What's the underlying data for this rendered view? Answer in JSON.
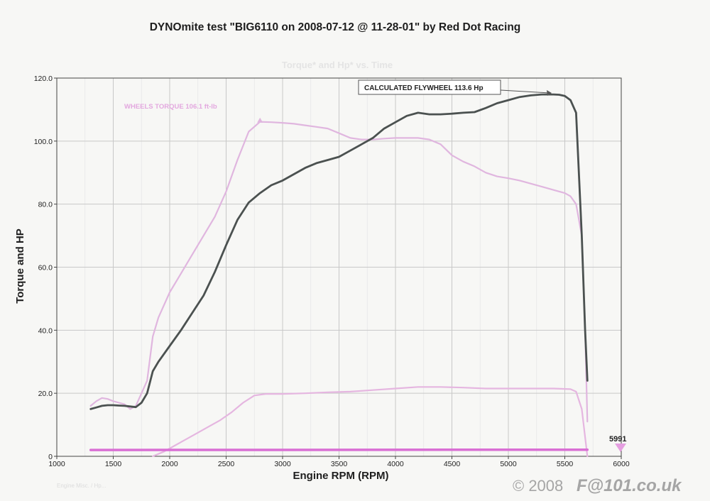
{
  "chart_data": {
    "type": "line",
    "title": "DYNOmite test \"BIG6110 on 2008-07-12 @ 11-28-01\" by Red Dot Racing",
    "subtitle": "Torque* and Hp* vs. Time",
    "xlabel": "Engine RPM (RPM)",
    "ylabel": "Torque and HP",
    "xlim": [
      1000,
      6000
    ],
    "ylim": [
      0,
      120
    ],
    "xticks": [
      1000,
      1500,
      2000,
      2500,
      3000,
      3500,
      4000,
      4500,
      5000,
      5500,
      6000
    ],
    "yticks": [
      0,
      20,
      40,
      60,
      80,
      100,
      120
    ],
    "xtick_labels": [
      "1000",
      "1500",
      "2000",
      "2500",
      "3000",
      "3500",
      "4000",
      "4500",
      "5000",
      "5500",
      "6000"
    ],
    "ytick_labels": [
      "0",
      "20.0",
      "40.0",
      "60.0",
      "80.0",
      "100.0",
      "120.0"
    ],
    "grid": true,
    "series": [
      {
        "name": "WHEELS TORQUE 106.1 ft-lb",
        "color": "#e0b6df",
        "x": [
          1300,
          1350,
          1400,
          1450,
          1500,
          1550,
          1600,
          1650,
          1700,
          1750,
          1800,
          1850,
          1900,
          2000,
          2100,
          2200,
          2300,
          2400,
          2500,
          2600,
          2700,
          2800,
          2900,
          3000,
          3100,
          3200,
          3300,
          3400,
          3500,
          3600,
          3700,
          3800,
          3900,
          4000,
          4100,
          4200,
          4300,
          4400,
          4500,
          4600,
          4700,
          4800,
          4900,
          5000,
          5100,
          5200,
          5300,
          5400,
          5500,
          5550,
          5600,
          5650,
          5680,
          5700
        ],
        "y": [
          16,
          17.5,
          18.5,
          18.2,
          17.5,
          17,
          16.5,
          15,
          16,
          20,
          24,
          38,
          44,
          52,
          58,
          64,
          70,
          76,
          84,
          94,
          103,
          106.1,
          106,
          105.8,
          105.5,
          105,
          104.5,
          104,
          102.5,
          101,
          100.5,
          100.5,
          100.8,
          101,
          101,
          101,
          100.5,
          99,
          95.5,
          93.5,
          92,
          90,
          88.8,
          88.2,
          87.5,
          86.5,
          85.5,
          84.5,
          83.5,
          82.5,
          80,
          70,
          40,
          11
        ]
      },
      {
        "name": "CALCULATED FLYWHEEL 113.6 Hp",
        "color": "#4b5150",
        "x": [
          1300,
          1350,
          1400,
          1450,
          1500,
          1550,
          1600,
          1650,
          1700,
          1750,
          1800,
          1850,
          1900,
          2000,
          2100,
          2200,
          2300,
          2400,
          2500,
          2600,
          2700,
          2800,
          2900,
          3000,
          3100,
          3200,
          3300,
          3400,
          3500,
          3600,
          3700,
          3800,
          3900,
          4000,
          4100,
          4200,
          4300,
          4400,
          4500,
          4600,
          4700,
          4800,
          4900,
          5000,
          5100,
          5200,
          5300,
          5400,
          5450,
          5500,
          5550,
          5600,
          5650,
          5680,
          5700
        ],
        "y": [
          15,
          15.5,
          16,
          16.2,
          16.2,
          16.1,
          16,
          15.8,
          15.6,
          17,
          20,
          27,
          30,
          35,
          40,
          45.5,
          51,
          58.5,
          67,
          75,
          80.5,
          83.5,
          86,
          87.5,
          89.5,
          91.5,
          93,
          94,
          95,
          97,
          99,
          101,
          104,
          106,
          108,
          109,
          108.5,
          108.5,
          108.7,
          109,
          109.2,
          110.5,
          112,
          113,
          114,
          114.5,
          114.8,
          114.8,
          114.7,
          114.3,
          113,
          109,
          70,
          40,
          24
        ]
      },
      {
        "name": "",
        "color": "#e5b6e0",
        "x": [
          1850,
          1950,
          2050,
          2150,
          2250,
          2350,
          2450,
          2550,
          2650,
          2750,
          2850,
          3000,
          3200,
          3400,
          3600,
          3800,
          4000,
          4200,
          4400,
          4600,
          4800,
          5000,
          5200,
          5400,
          5550,
          5600,
          5650,
          5700
        ],
        "y": [
          0,
          1.5,
          3.5,
          5.5,
          7.5,
          9.5,
          11.5,
          14,
          17,
          19.3,
          19.8,
          19.8,
          20,
          20.3,
          20.5,
          21,
          21.5,
          22,
          22,
          21.8,
          21.5,
          21.5,
          21.5,
          21.5,
          21.3,
          20.5,
          15,
          0
        ]
      },
      {
        "name": "",
        "color": "#d96fd4",
        "x": [
          1300,
          5700
        ],
        "y": [
          2,
          2.1
        ]
      }
    ],
    "annotations": {
      "torque_label": "WHEELS TORQUE 106.1 ft-lb",
      "flywheel_label": "CALCULATED FLYWHEEL 113.6 Hp",
      "rpm_marker": "5991"
    }
  },
  "footer": {
    "copyright": "© 2008",
    "brand": "F@101.co.uk",
    "faint_note": "Engine Misc. / Hp..."
  }
}
